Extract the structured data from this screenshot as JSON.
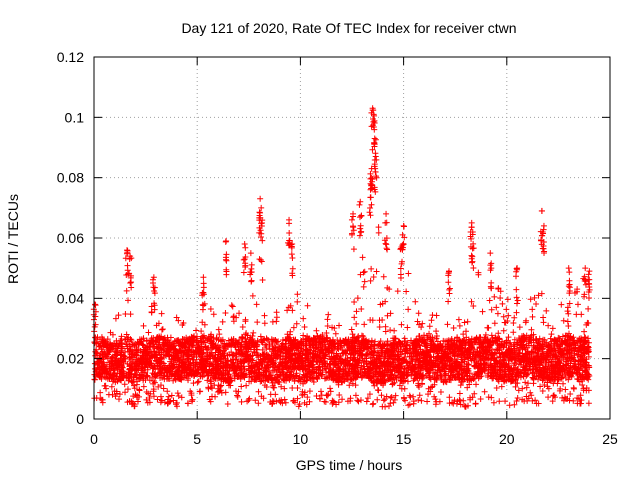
{
  "chart_data": {
    "type": "scatter",
    "title": "Day 121 of 2020, Rate Of TEC Index for receiver ctwn",
    "xlabel": "GPS time / hours",
    "ylabel": "ROTI / TECUs",
    "xlim": [
      0,
      25
    ],
    "ylim": [
      0,
      0.12
    ],
    "x_ticks": [
      "0",
      "5",
      "10",
      "15",
      "20",
      "25"
    ],
    "y_ticks": [
      "0",
      "0.02",
      "0.04",
      "0.06",
      "0.08",
      "0.1",
      "0.12"
    ],
    "grid": true,
    "marker": "plus",
    "color": "#ff0000",
    "series": [
      {
        "x": [
          0.0,
          0.5,
          1.0,
          1.5,
          2.0,
          2.5,
          3.0,
          3.5,
          4.0,
          4.5,
          5.0,
          5.5,
          6.0,
          6.5,
          7.0,
          7.5,
          8.0,
          8.5,
          9.0,
          9.5,
          10.0,
          10.5,
          11.0,
          11.5,
          12.0,
          12.5,
          13.0,
          13.5,
          14.0,
          14.5,
          15.0,
          15.5,
          16.0,
          16.5,
          17.0,
          17.5,
          18.0,
          18.5,
          19.0,
          19.5,
          20.0,
          20.5,
          21.0,
          21.5,
          22.0,
          22.5,
          23.0,
          23.5,
          24.0
        ],
        "upper_envelope": [
          0.034,
          0.031,
          0.033,
          0.045,
          0.034,
          0.032,
          0.046,
          0.031,
          0.034,
          0.036,
          0.034,
          0.045,
          0.033,
          0.037,
          0.044,
          0.037,
          0.062,
          0.036,
          0.04,
          0.05,
          0.039,
          0.037,
          0.033,
          0.037,
          0.04,
          0.038,
          0.07,
          0.095,
          0.05,
          0.045,
          0.057,
          0.04,
          0.038,
          0.034,
          0.037,
          0.034,
          0.033,
          0.053,
          0.043,
          0.044,
          0.041,
          0.036,
          0.033,
          0.055,
          0.032,
          0.038,
          0.044,
          0.046,
          0.048
        ],
        "lower_envelope": [
          0.006,
          0.005,
          0.004,
          0.005,
          0.004,
          0.005,
          0.006,
          0.005,
          0.004,
          0.005,
          0.006,
          0.006,
          0.005,
          0.004,
          0.005,
          0.006,
          0.004,
          0.005,
          0.004,
          0.005,
          0.004,
          0.005,
          0.006,
          0.005,
          0.004,
          0.005,
          0.006,
          0.004,
          0.003,
          0.005,
          0.004,
          0.005,
          0.006,
          0.005,
          0.004,
          0.005,
          0.004,
          0.005,
          0.006,
          0.005,
          0.004,
          0.005,
          0.006,
          0.005,
          0.004,
          0.005,
          0.006,
          0.005,
          0.005
        ],
        "peaks": [
          {
            "x": 0.05,
            "y": 0.038
          },
          {
            "x": 1.6,
            "y": 0.056
          },
          {
            "x": 1.75,
            "y": 0.054
          },
          {
            "x": 2.9,
            "y": 0.047
          },
          {
            "x": 5.3,
            "y": 0.047
          },
          {
            "x": 6.4,
            "y": 0.059
          },
          {
            "x": 7.3,
            "y": 0.058
          },
          {
            "x": 7.6,
            "y": 0.055
          },
          {
            "x": 8.05,
            "y": 0.073
          },
          {
            "x": 8.1,
            "y": 0.07
          },
          {
            "x": 9.45,
            "y": 0.066
          },
          {
            "x": 9.6,
            "y": 0.058
          },
          {
            "x": 12.55,
            "y": 0.068
          },
          {
            "x": 12.9,
            "y": 0.072
          },
          {
            "x": 13.5,
            "y": 0.103
          },
          {
            "x": 13.55,
            "y": 0.101
          },
          {
            "x": 13.6,
            "y": 0.093
          },
          {
            "x": 13.65,
            "y": 0.087
          },
          {
            "x": 13.45,
            "y": 0.083
          },
          {
            "x": 13.4,
            "y": 0.078
          },
          {
            "x": 14.15,
            "y": 0.068
          },
          {
            "x": 15.0,
            "y": 0.064
          },
          {
            "x": 14.9,
            "y": 0.057
          },
          {
            "x": 17.2,
            "y": 0.049
          },
          {
            "x": 18.3,
            "y": 0.065
          },
          {
            "x": 18.35,
            "y": 0.062
          },
          {
            "x": 19.2,
            "y": 0.055
          },
          {
            "x": 20.5,
            "y": 0.05
          },
          {
            "x": 21.7,
            "y": 0.069
          },
          {
            "x": 21.8,
            "y": 0.064
          },
          {
            "x": 23.0,
            "y": 0.05
          },
          {
            "x": 23.8,
            "y": 0.05
          },
          {
            "x": 24.0,
            "y": 0.049
          }
        ]
      }
    ]
  }
}
